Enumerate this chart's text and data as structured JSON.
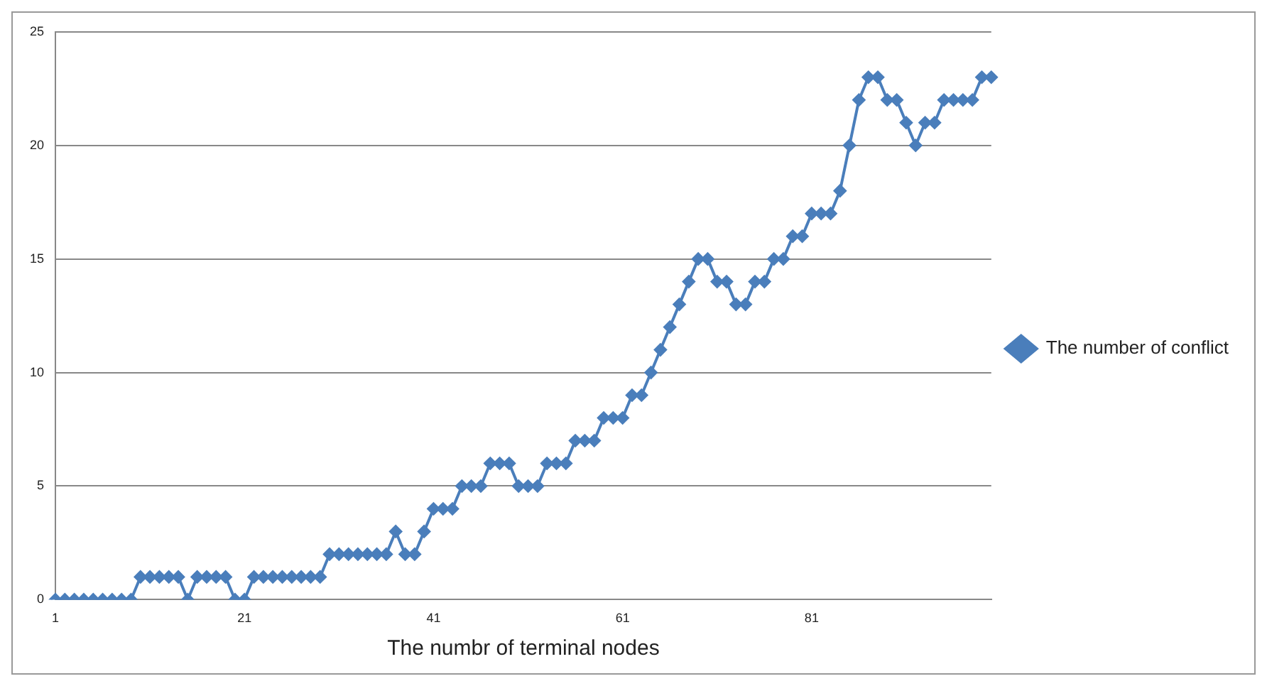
{
  "chart_data": {
    "type": "line",
    "xlabel": "The numbr of terminal nodes",
    "categories": [
      "1",
      null,
      null,
      null,
      null,
      null,
      null,
      null,
      null,
      null,
      null,
      null,
      null,
      null,
      null,
      null,
      null,
      null,
      null,
      null,
      "21",
      null,
      null,
      null,
      null,
      null,
      null,
      null,
      null,
      null,
      null,
      null,
      null,
      null,
      null,
      null,
      null,
      null,
      null,
      null,
      "41",
      null,
      null,
      null,
      null,
      null,
      null,
      null,
      null,
      null,
      null,
      null,
      null,
      null,
      null,
      null,
      null,
      null,
      null,
      null,
      "61",
      null,
      null,
      null,
      null,
      null,
      null,
      null,
      null,
      null,
      null,
      null,
      null,
      null,
      null,
      null,
      null,
      null,
      null,
      null,
      "81",
      null,
      null,
      null,
      null,
      null,
      null,
      null,
      null,
      null,
      null,
      null,
      null,
      null,
      null,
      null,
      null,
      null,
      null,
      null
    ],
    "series": [
      {
        "name": "The number of conflict",
        "color": "#4a7ebb",
        "values": [
          0,
          0,
          0,
          0,
          0,
          0,
          0,
          0,
          0,
          1,
          1,
          1,
          1,
          1,
          0,
          1,
          1,
          1,
          1,
          0,
          0,
          1,
          1,
          1,
          1,
          1,
          1,
          1,
          1,
          2,
          2,
          2,
          2,
          2,
          2,
          2,
          3,
          2,
          2,
          3,
          4,
          4,
          4,
          5,
          5,
          5,
          6,
          6,
          6,
          5,
          5,
          5,
          6,
          6,
          6,
          7,
          7,
          7,
          8,
          8,
          8,
          9,
          9,
          10,
          11,
          12,
          13,
          14,
          15,
          15,
          14,
          14,
          13,
          13,
          14,
          14,
          15,
          15,
          16,
          16,
          17,
          17,
          17,
          18,
          20,
          22,
          23,
          23,
          22,
          22,
          21,
          20,
          21,
          21,
          22,
          22,
          22,
          22,
          23,
          23
        ]
      }
    ],
    "ylim": [
      0,
      25
    ],
    "yticks": [
      0,
      5,
      10,
      15,
      20,
      25
    ],
    "grid": "y",
    "legend": "right",
    "marker": "diamond",
    "line_style": "solid"
  }
}
